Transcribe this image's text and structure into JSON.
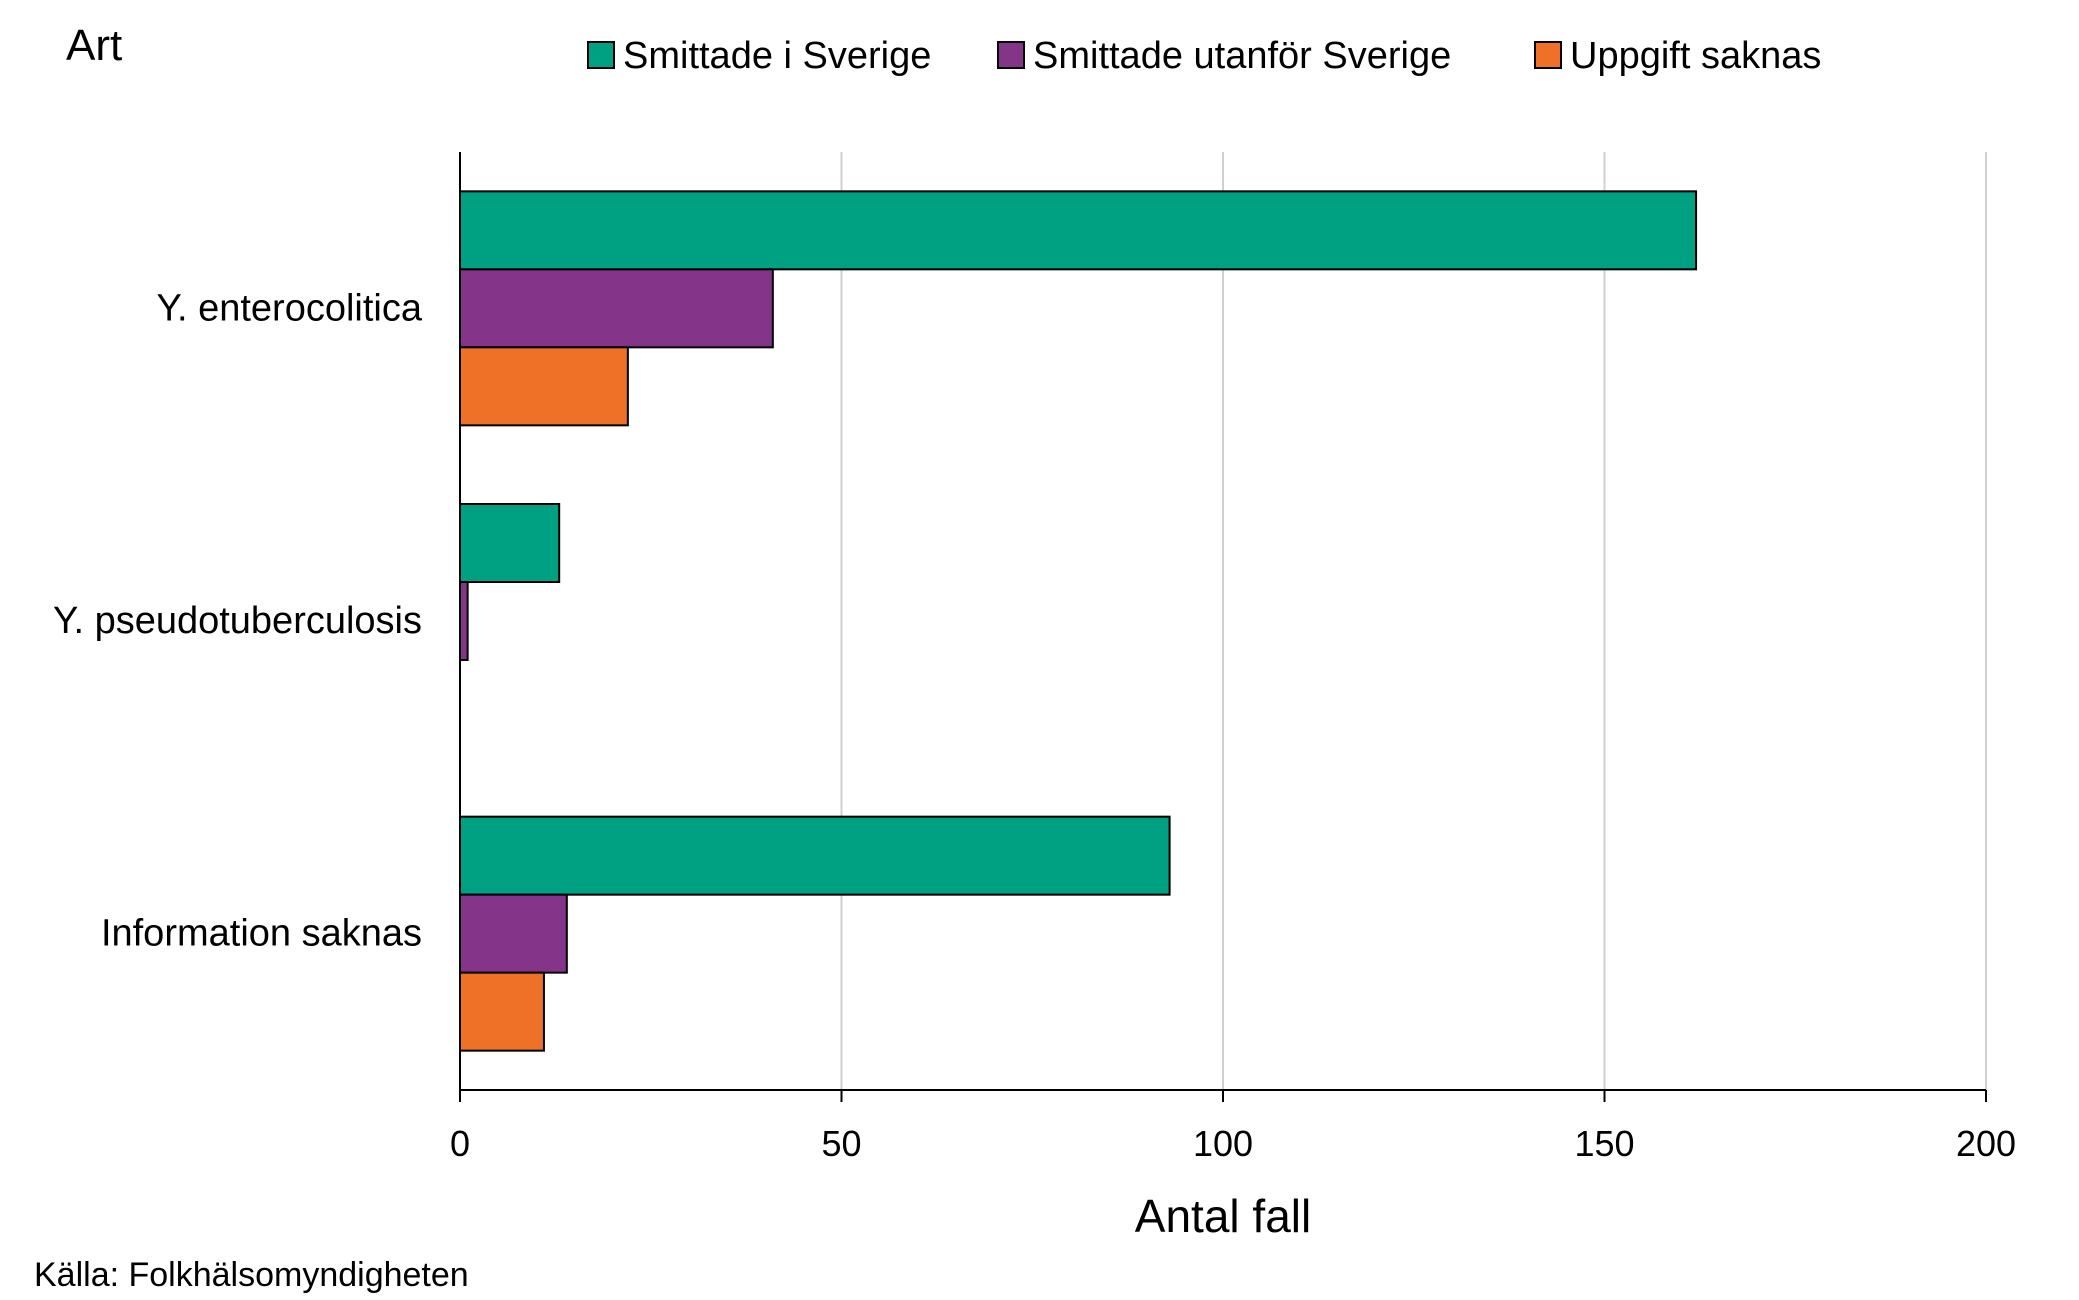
{
  "chart_data": {
    "type": "bar",
    "orientation": "horizontal",
    "title": "",
    "ylabel": "Art",
    "xlabel": "Antal fall",
    "xlim": [
      0,
      200
    ],
    "xticks": [
      0,
      50,
      100,
      150,
      200
    ],
    "grid": true,
    "legend_position": "top",
    "categories": [
      "Y. enterocolitica",
      "Y. pseudotuberculosis",
      "Information saknas"
    ],
    "series": [
      {
        "name": "Smittade i Sverige",
        "color": "#00a082",
        "values": [
          162,
          13,
          93
        ]
      },
      {
        "name": "Smittade utanför Sverige",
        "color": "#84358a",
        "values": [
          41,
          1,
          14
        ]
      },
      {
        "name": "Uppgift saknas",
        "color": "#ee7127",
        "values": [
          22,
          0,
          11
        ]
      }
    ],
    "source": "Källa: Folkhälsomyndigheten"
  }
}
